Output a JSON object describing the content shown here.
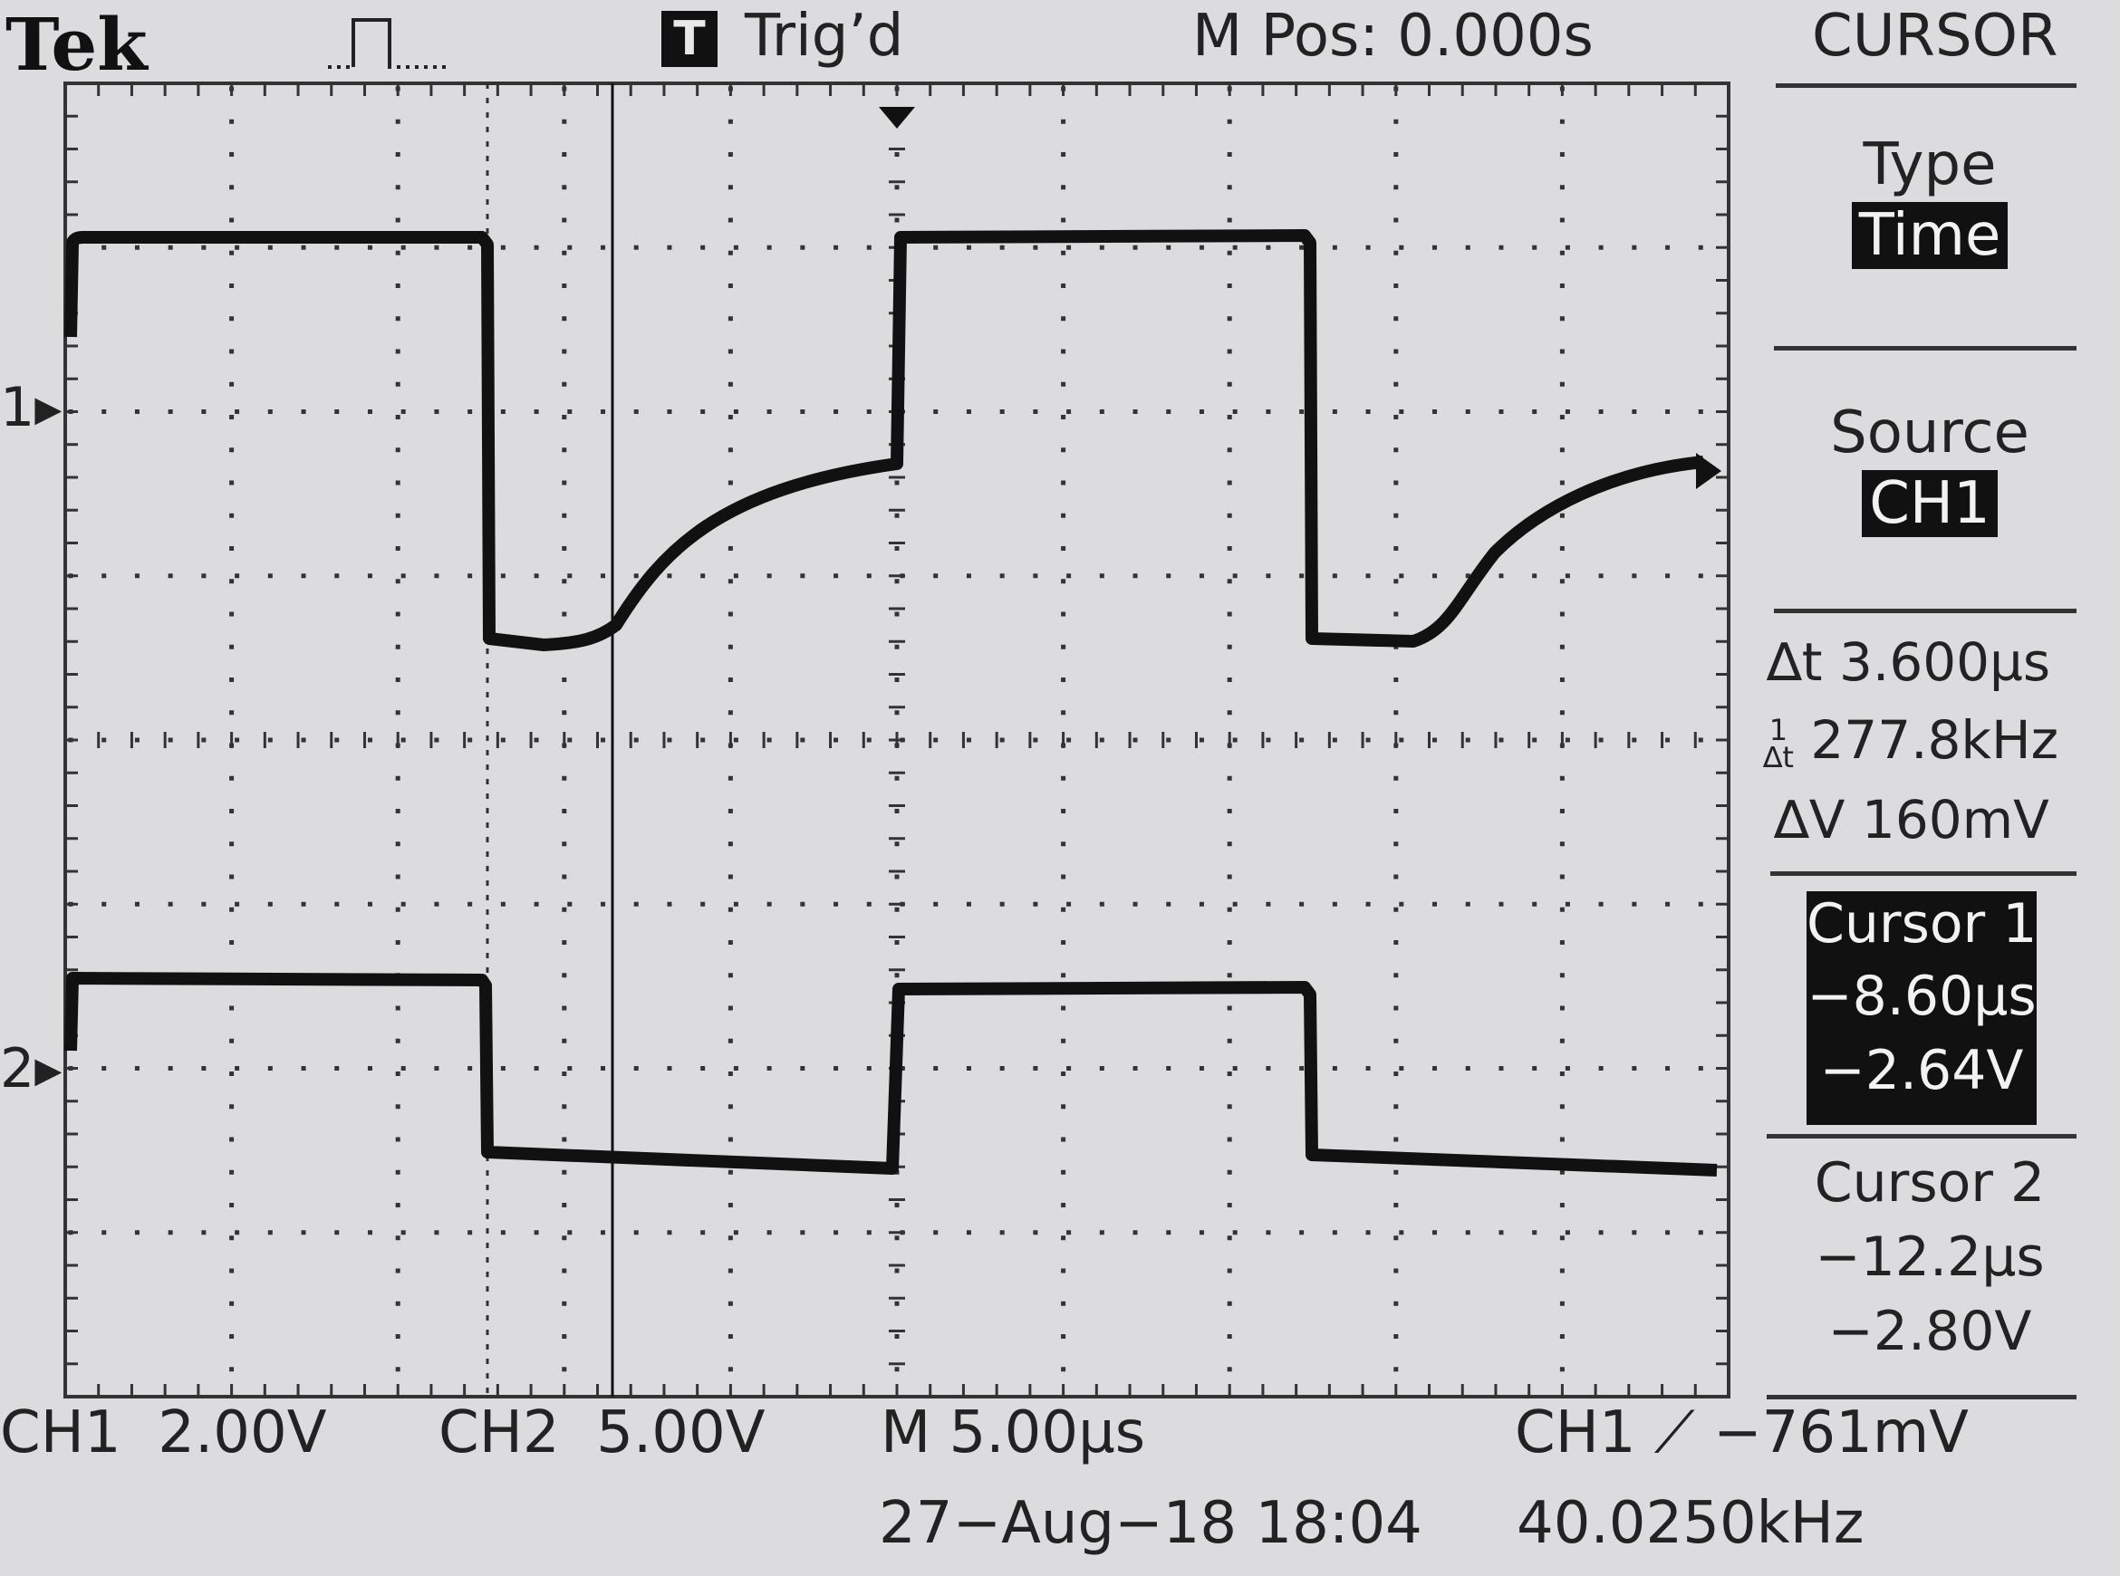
{
  "header": {
    "brand": "Tek",
    "trigger_badge": "T",
    "trigger_status": "Trig’d",
    "main_position": "M Pos: 0.000s",
    "menu_title": "CURSOR"
  },
  "side_menu": {
    "type_label": "Type",
    "type_value": "Time",
    "source_label": "Source",
    "source_value": "CH1",
    "delta_t": "3.600µs",
    "inv_delta_t": "277.8kHz",
    "delta_v": "160mV",
    "cursor1_label": "Cursor 1",
    "cursor1_time": "−8.60µs",
    "cursor1_volt": "−2.64V",
    "cursor2_label": "Cursor 2",
    "cursor2_time": "−12.2µs",
    "cursor2_volt": "−2.80V"
  },
  "status_bar": {
    "ch1_label": "CH1",
    "ch1_scale": "2.00V",
    "ch2_label": "CH2",
    "ch2_scale": "5.00V",
    "timebase": "M 5.00µs",
    "trigger_source": "CH1",
    "trigger_level": "−761mV",
    "date_time": "27−Aug−18 18:04",
    "frequency": "40.0250kHz"
  },
  "markers": {
    "ch1": "1",
    "ch2": "2"
  },
  "colors": {
    "screen_bg": "#dcdcdf",
    "trace": "#111111",
    "graticule": "#333333"
  }
}
